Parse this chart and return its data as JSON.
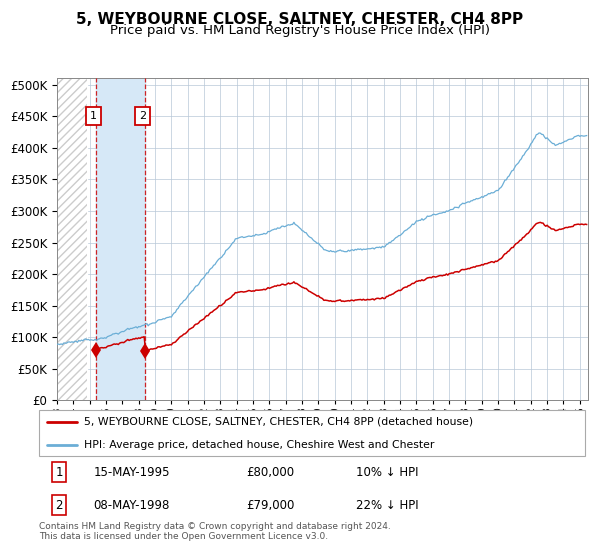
{
  "title": "5, WEYBOURNE CLOSE, SALTNEY, CHESTER, CH4 8PP",
  "subtitle": "Price paid vs. HM Land Registry's House Price Index (HPI)",
  "legend_line1": "5, WEYBOURNE CLOSE, SALTNEY, CHESTER, CH4 8PP (detached house)",
  "legend_line2": "HPI: Average price, detached house, Cheshire West and Chester",
  "footnote": "Contains HM Land Registry data © Crown copyright and database right 2024.\nThis data is licensed under the Open Government Licence v3.0.",
  "sale1_date": "15-MAY-1995",
  "sale1_price": 80000,
  "sale1_label": "1",
  "sale1_pct": "10% ↓ HPI",
  "sale2_date": "08-MAY-1998",
  "sale2_price": 79000,
  "sale2_label": "2",
  "sale2_pct": "22% ↓ HPI",
  "hpi_color": "#6baed6",
  "price_color": "#cc0000",
  "marker_color": "#cc0000",
  "sale1_x": 1995.37,
  "sale2_x": 1998.37,
  "ylim_min": 0,
  "ylim_max": 510000,
  "xlim_min": 1993.0,
  "xlim_max": 2025.5,
  "shade_color": "#d6e8f7",
  "grid_color": "#b8c8d8",
  "hatch_color": "#cccccc"
}
